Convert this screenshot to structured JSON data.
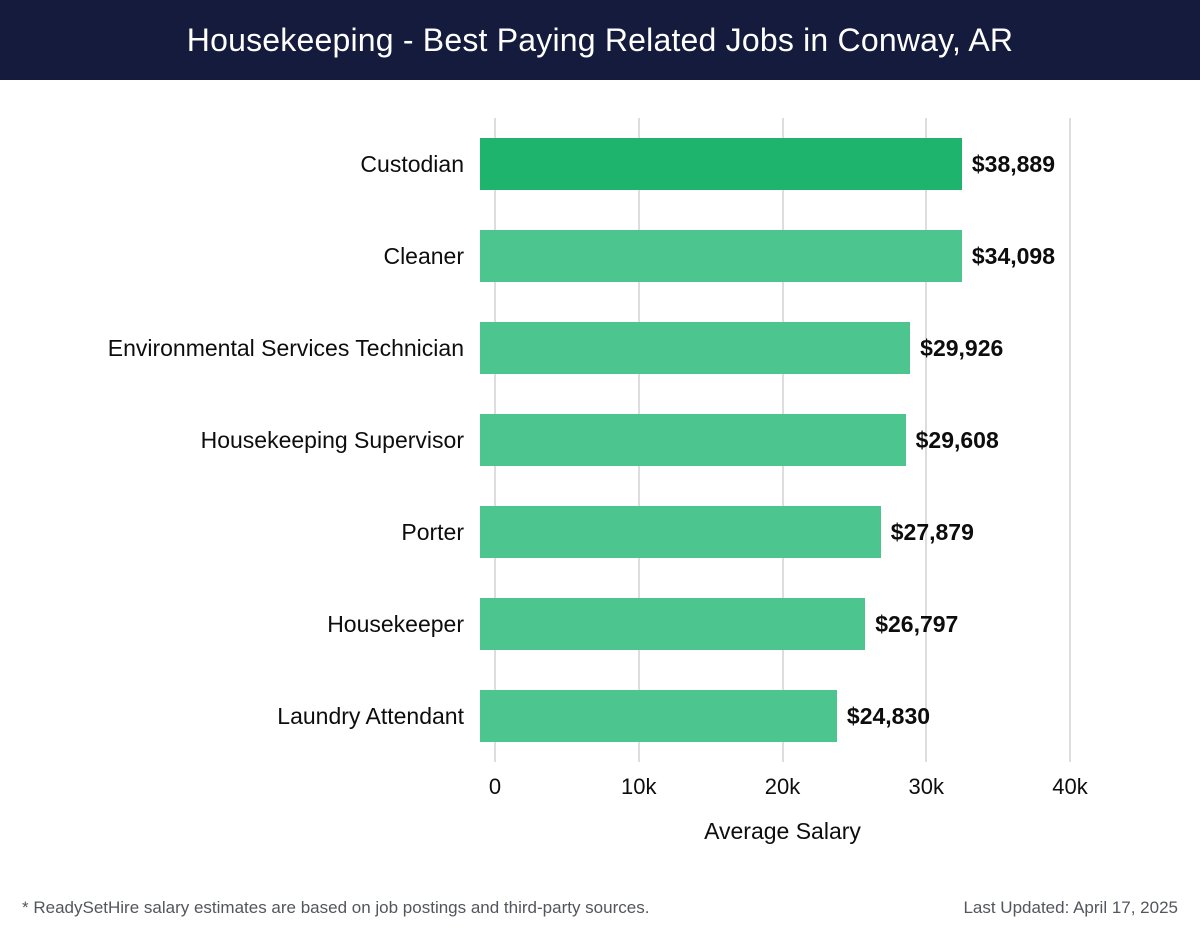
{
  "header": {
    "title": "Housekeeping - Best Paying Related Jobs in Conway, AR",
    "bg_color": "#141b3c",
    "text_color": "#ffffff"
  },
  "chart_data": {
    "type": "bar",
    "orientation": "horizontal",
    "title": "Housekeeping - Best Paying Related Jobs in Conway, AR",
    "categories": [
      "Custodian",
      "Cleaner",
      "Environmental Services Technician",
      "Housekeeping Supervisor",
      "Porter",
      "Housekeeper",
      "Laundry Attendant"
    ],
    "values": [
      38889,
      34098,
      29926,
      29608,
      27879,
      26797,
      24830
    ],
    "value_labels": [
      "$38,889",
      "$34,098",
      "$29,926",
      "$29,608",
      "$27,879",
      "$26,797",
      "$24,830"
    ],
    "bar_colors": [
      "#1fb46d",
      "#4cc68e",
      "#4cc68e",
      "#4cc68e",
      "#4cc68e",
      "#4cc68e",
      "#4cc68e"
    ],
    "xlabel": "Average Salary",
    "ylabel": "",
    "x_ticks": [
      "0",
      "10k",
      "20k",
      "30k",
      "40k"
    ],
    "xlim": [
      0,
      40000
    ],
    "grid": "vertical",
    "gridline_color": "#dddddd",
    "legend": "none"
  },
  "footer": {
    "note": "* ReadySetHire salary estimates are based on job postings and third-party sources.",
    "updated": "Last Updated: April 17, 2025"
  }
}
